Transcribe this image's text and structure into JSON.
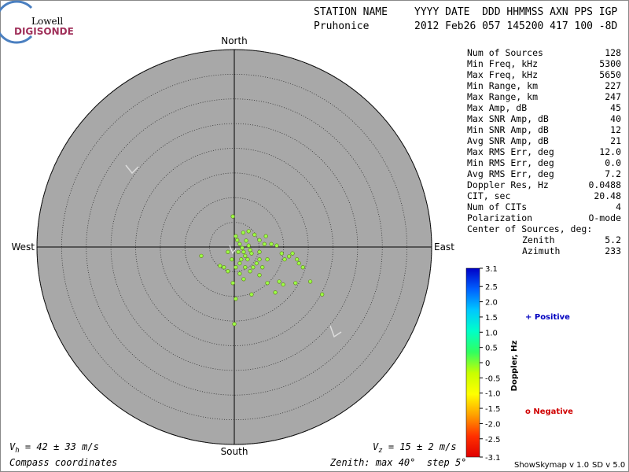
{
  "logo": {
    "top": "Lowell",
    "bottom": "DIGISONDE"
  },
  "header": {
    "rows": [
      [
        "STATION NAME",
        "YYYY DATE  DDD HHMMSS AXN PPS IGP"
      ],
      [
        "Pruhonice",
        "2012 Feb26 057 145200 417 100 -8D"
      ]
    ]
  },
  "stats": {
    "rows": [
      [
        "Num of Sources",
        "128"
      ],
      [
        "Min Freq, kHz",
        "5300"
      ],
      [
        "Max Freq, kHz",
        "5650"
      ],
      [
        "Min Range, km",
        "227"
      ],
      [
        "Max Range, km",
        "247"
      ],
      [
        "Max Amp, dB",
        "45"
      ],
      [
        "Max SNR Amp, dB",
        "40"
      ],
      [
        "Min SNR Amp, dB",
        "12"
      ],
      [
        "Avg SNR Amp, dB",
        "21"
      ],
      [
        "Max RMS Err, deg",
        "12.0"
      ],
      [
        "Min RMS Err, deg",
        "0.0"
      ],
      [
        "Avg RMS Err, deg",
        "7.2"
      ],
      [
        "Doppler Res, Hz",
        "0.0488"
      ],
      [
        "CIT, sec",
        "20.48"
      ],
      [
        "Num of CITs",
        "4"
      ],
      [
        "Polarization",
        "O-mode"
      ]
    ],
    "center_title": "Center of Sources, deg:",
    "center_rows": [
      [
        "Zenith",
        "5.2"
      ],
      [
        "Azimuth",
        "233"
      ]
    ]
  },
  "chart_data": {
    "type": "polar-scatter",
    "directions": {
      "north": "North",
      "south": "South",
      "east": "East",
      "west": "West"
    },
    "x": [
      -0.3,
      0.3,
      0.6,
      1.1,
      1.6,
      1.9,
      2.2,
      2.7,
      3.2,
      3.5,
      2.9,
      2.4,
      1.8,
      2.9,
      4.1,
      5.1,
      6.1,
      6.4,
      7.5,
      8.6,
      9.6,
      10.2,
      11.1,
      11.8,
      12.7,
      13.9,
      13.1,
      15.4,
      17.8,
      12.4,
      9.1,
      9.9,
      8.3,
      6.7,
      5.1,
      3.5,
      1.9,
      1.1,
      0.3,
      -0.5,
      -1.3,
      -2.1,
      -2.9,
      0.3,
      0.0,
      1.1,
      0.8,
      1.4,
      2.2,
      3.2,
      3.8,
      4.5,
      5.1,
      5.7,
      -1.3,
      -6.7,
      5.1,
      6.7,
      -0.3
    ],
    "y": [
      6.2,
      2.2,
      1.4,
      0.6,
      -0.2,
      -1.0,
      -1.8,
      -2.5,
      -0.6,
      -1.3,
      0.3,
      1.3,
      2.9,
      3.2,
      2.5,
      1.4,
      0.6,
      2.2,
      0.6,
      0.3,
      -1.3,
      -2.5,
      -1.9,
      -1.3,
      -2.5,
      -4.1,
      -3.3,
      -7.0,
      -9.6,
      -7.3,
      -7.0,
      -7.6,
      -9.2,
      -7.3,
      -5.7,
      -9.6,
      -6.5,
      -5.4,
      -4.1,
      -2.5,
      -4.9,
      -4.1,
      -3.8,
      -10.5,
      -15.6,
      -3.3,
      -1.0,
      -2.5,
      -4.1,
      -4.9,
      -4.1,
      -3.3,
      -2.5,
      -4.1,
      -1.0,
      -1.8,
      -1.0,
      -2.5,
      -7.3
    ],
    "color": "#9cff46",
    "rlim": [
      0,
      40
    ],
    "rgrid": [
      5,
      10,
      15,
      20,
      25,
      30,
      35,
      40
    ]
  },
  "colorbar": {
    "title": "Doppler, Hz",
    "lim": [
      -3.1,
      3.1
    ],
    "ticks": [
      3.1,
      2.5,
      {
        "value": 2,
        "label": "2.0"
      },
      1.5,
      {
        "value": 1,
        "label": "1.0"
      },
      0.5,
      0,
      -0.5,
      {
        "value": -1,
        "label": "-1.0"
      },
      -1.5,
      {
        "value": -2,
        "label": "-2.0"
      },
      -2.5,
      -3.1
    ],
    "colors": [
      "#0000c8",
      "#0060ff",
      "#00c8ff",
      "#00ffc8",
      "#30ff60",
      "#c8ff00",
      "#ffff00",
      "#ffa000",
      "#ff3000",
      "#e00000"
    ]
  },
  "legend": {
    "positive": "+ Positive",
    "negative": "o Negative"
  },
  "velocity": {
    "h": {
      "symbol": "V",
      "sub": "h",
      "text": " = 42 ± 33 m/s"
    },
    "z": {
      "symbol": "V",
      "sub": "z",
      "text": " = 15 ± 2 m/s"
    }
  },
  "footer": {
    "coords": "Compass coordinates",
    "zenith": "Zenith: max 40°  step 5°",
    "program": "ShowSkymap v 1.0",
    "sd": "SD v 5.0"
  }
}
